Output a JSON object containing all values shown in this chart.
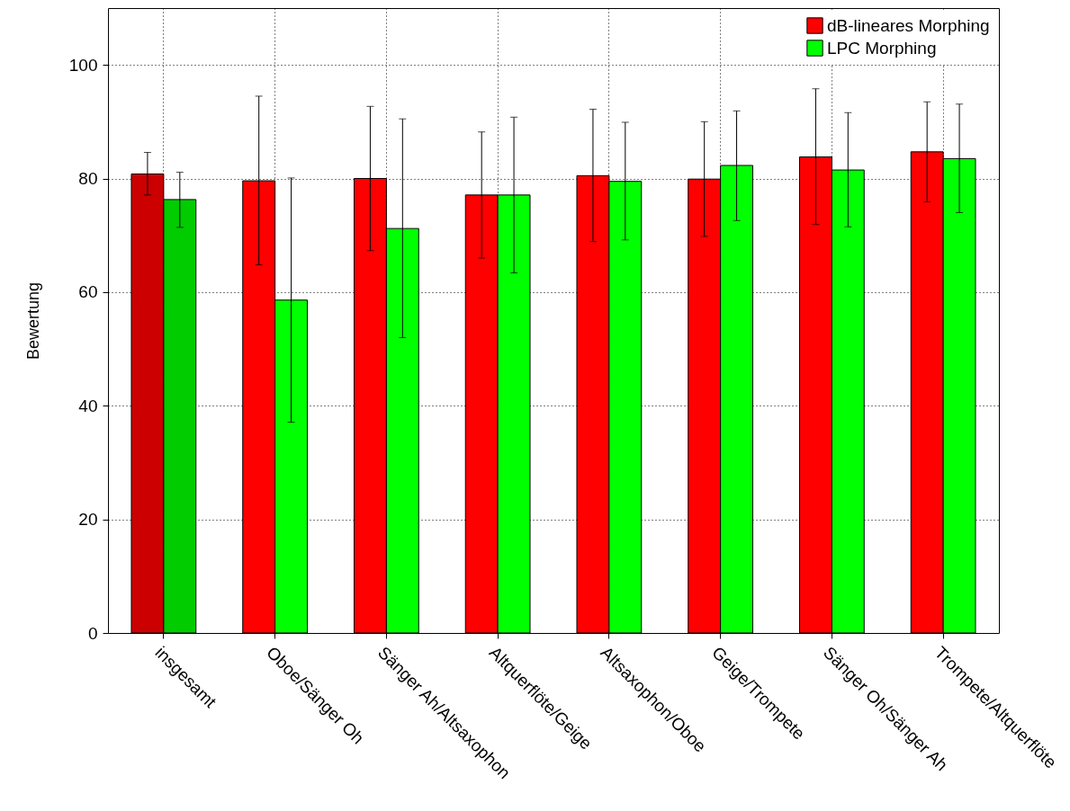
{
  "chart_data": {
    "type": "bar",
    "ylabel": "Bewertung",
    "categories": [
      "insgesamt",
      "Oboe/Sänger Oh",
      "Sänger Ah/Altsaxophon",
      "Altquerflöte/Geige",
      "Altsaxophon/Oboe",
      "Geige/Trompete",
      "Sänger Oh/Sänger Ah",
      "Trompete/Altquerflöte"
    ],
    "series": [
      {
        "name": "dB-lineares Morphing",
        "color": "#ff0000",
        "colors": [
          "#cc0000",
          "#ff0000",
          "#ff0000",
          "#ff0000",
          "#ff0000",
          "#ff0000",
          "#ff0000",
          "#ff0000"
        ],
        "values": [
          80.8,
          79.6,
          80.0,
          77.1,
          80.5,
          79.9,
          83.8,
          84.7
        ],
        "errors": [
          [
            77.1,
            84.6
          ],
          [
            64.8,
            94.5
          ],
          [
            67.3,
            92.7
          ],
          [
            66.0,
            88.2
          ],
          [
            68.9,
            92.2
          ],
          [
            69.8,
            90.0
          ],
          [
            71.9,
            95.8
          ],
          [
            75.9,
            93.5
          ]
        ]
      },
      {
        "name": "LPC Morphing",
        "color": "#00ff00",
        "colors": [
          "#00cc00",
          "#00ff00",
          "#00ff00",
          "#00ff00",
          "#00ff00",
          "#00ff00",
          "#00ff00",
          "#00ff00"
        ],
        "values": [
          76.3,
          58.6,
          71.2,
          77.1,
          79.5,
          82.3,
          81.5,
          83.5
        ],
        "errors": [
          [
            71.4,
            81.1
          ],
          [
            37.1,
            80.1
          ],
          [
            52.0,
            90.5
          ],
          [
            63.4,
            90.8
          ],
          [
            69.2,
            89.9
          ],
          [
            72.6,
            91.9
          ],
          [
            71.5,
            91.6
          ],
          [
            74.0,
            93.1
          ]
        ]
      }
    ],
    "ylim": [
      0,
      110
    ],
    "yticks": [
      0,
      20,
      40,
      60,
      80,
      100
    ],
    "grid": true,
    "legend": "top right"
  }
}
